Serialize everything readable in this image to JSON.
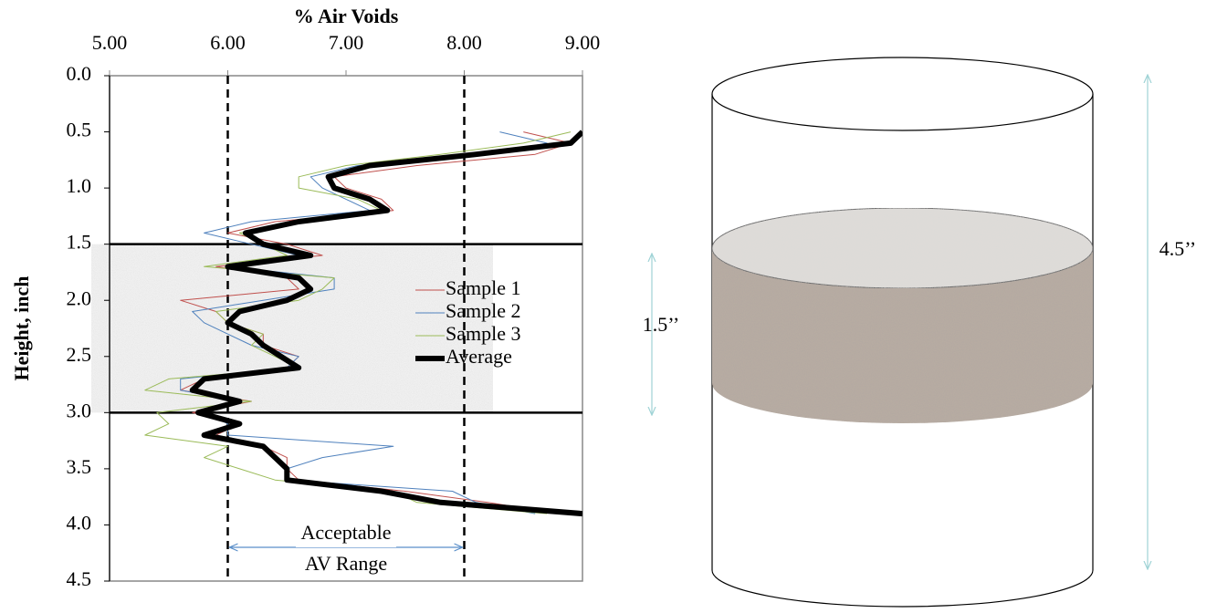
{
  "chart_data": {
    "type": "line",
    "x_label": "% Air Voids",
    "y_label": "Height, inch",
    "xlim": [
      5,
      9
    ],
    "xticks": [
      {
        "value": 5,
        "label": "5.00"
      },
      {
        "value": 6,
        "label": "6.00"
      },
      {
        "value": 7,
        "label": "7.00"
      },
      {
        "value": 8,
        "label": "8.00"
      },
      {
        "value": 9,
        "label": "9.00"
      }
    ],
    "ylim": [
      0,
      4.5
    ],
    "y_inverted": true,
    "yticks": [
      {
        "value": 0,
        "label": "0.0"
      },
      {
        "value": 0.5,
        "label": "0.5"
      },
      {
        "value": 1,
        "label": "1.0"
      },
      {
        "value": 1.5,
        "label": "1.5"
      },
      {
        "value": 2,
        "label": "2.0"
      },
      {
        "value": 2.5,
        "label": "2.5"
      },
      {
        "value": 3,
        "label": "3.0"
      },
      {
        "value": 3.5,
        "label": "3.5"
      },
      {
        "value": 4,
        "label": "4.0"
      },
      {
        "value": 4.5,
        "label": "4.5"
      }
    ],
    "y": [
      0.5,
      0.6,
      0.7,
      0.8,
      0.9,
      1.0,
      1.1,
      1.2,
      1.3,
      1.4,
      1.5,
      1.6,
      1.7,
      1.8,
      1.9,
      2.0,
      2.1,
      2.2,
      2.3,
      2.4,
      2.5,
      2.6,
      2.7,
      2.8,
      2.9,
      3.0,
      3.1,
      3.2,
      3.3,
      3.4,
      3.5,
      3.6,
      3.7,
      3.8,
      3.9
    ],
    "series": [
      {
        "name": "Sample 1",
        "color": "#c0504d",
        "width": 1,
        "values": [
          8.5,
          8.9,
          8.6,
          7.6,
          6.9,
          7.0,
          7.3,
          7.4,
          6.4,
          6.0,
          6.5,
          6.8,
          5.9,
          6.5,
          6.6,
          5.6,
          5.9,
          6.0,
          6.3,
          6.3,
          6.6,
          6.5,
          5.8,
          5.6,
          6.2,
          5.7,
          6.1,
          5.9,
          6.3,
          6.5,
          6.5,
          6.6,
          7.5,
          8.2,
          8.8
        ]
      },
      {
        "name": "Sample 2",
        "color": "#4f81bd",
        "width": 1,
        "values": [
          8.3,
          8.7,
          8.2,
          7.1,
          6.7,
          6.8,
          7.0,
          7.2,
          6.2,
          5.8,
          6.2,
          6.6,
          6.0,
          6.9,
          6.9,
          6.3,
          5.7,
          5.8,
          6.0,
          6.2,
          6.6,
          6.5,
          5.6,
          5.6,
          6.1,
          5.8,
          6.0,
          6.0,
          7.4,
          6.8,
          6.5,
          6.5,
          7.9,
          8.1,
          8.6
        ]
      },
      {
        "name": "Sample 3",
        "color": "#9bbb59",
        "width": 1,
        "values": [
          8.9,
          8.5,
          7.8,
          7.0,
          6.6,
          6.6,
          7.1,
          7.3,
          6.6,
          6.1,
          6.3,
          6.5,
          5.8,
          6.9,
          6.8,
          6.6,
          5.9,
          6.0,
          6.3,
          6.2,
          6.4,
          6.6,
          5.5,
          5.3,
          6.2,
          5.4,
          5.5,
          5.3,
          6.0,
          5.8,
          6.1,
          6.4,
          7.4,
          7.6,
          8.7
        ]
      },
      {
        "name": "Average",
        "color": "#000000",
        "width": 6,
        "values": [
          9.0,
          8.9,
          8.1,
          7.2,
          6.85,
          6.9,
          7.2,
          7.35,
          6.6,
          6.15,
          6.3,
          6.7,
          6.0,
          6.6,
          6.7,
          6.5,
          6.1,
          6.0,
          6.2,
          6.3,
          6.45,
          6.6,
          5.8,
          5.7,
          6.1,
          5.75,
          6.1,
          5.8,
          6.3,
          6.4,
          6.5,
          6.5,
          7.3,
          7.8,
          9.0
        ]
      }
    ],
    "acceptable_range": [
      6,
      8
    ],
    "layer_bounds": [
      1.5,
      3.0
    ],
    "annotation_lines": [
      "Acceptable",
      "AV Range"
    ]
  },
  "diagram": {
    "layer_height_label": "1.5’’",
    "total_height_label": "4.5’’"
  }
}
